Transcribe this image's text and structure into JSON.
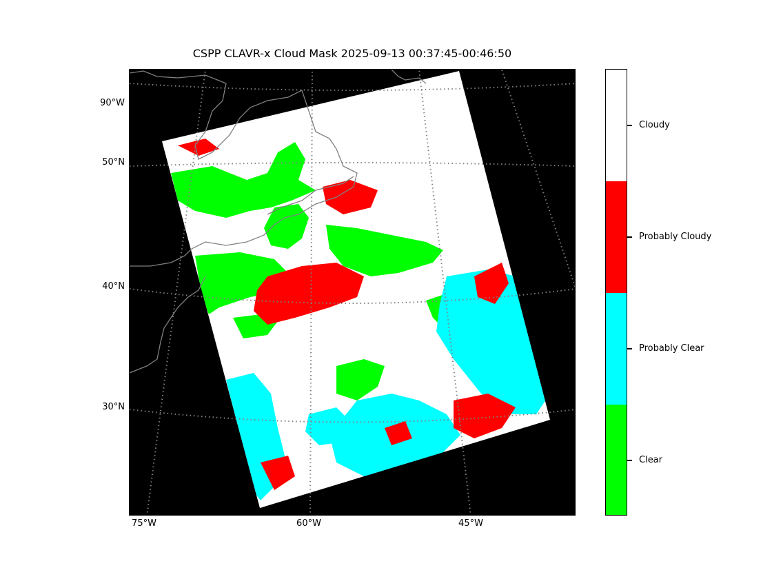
{
  "title": "CSPP CLAVR-x Cloud Mask 2025-09-13 00:37:45-00:46:50",
  "map": {
    "background": "#000000",
    "coastline_color": "#808080",
    "gridline_color": "#808080",
    "gridline_style": "dotted",
    "lat_labels": [
      "90°W",
      "50°N",
      "40°N",
      "30°N"
    ],
    "lon_labels": [
      "75°W",
      "60°W",
      "45°W"
    ]
  },
  "colorbar": {
    "categories": [
      {
        "label": "Cloudy",
        "color": "#ffffff"
      },
      {
        "label": "Probably Cloudy",
        "color": "#ff0000"
      },
      {
        "label": "Probably Clear",
        "color": "#00ffff"
      },
      {
        "label": "Clear",
        "color": "#00ff00"
      }
    ]
  }
}
